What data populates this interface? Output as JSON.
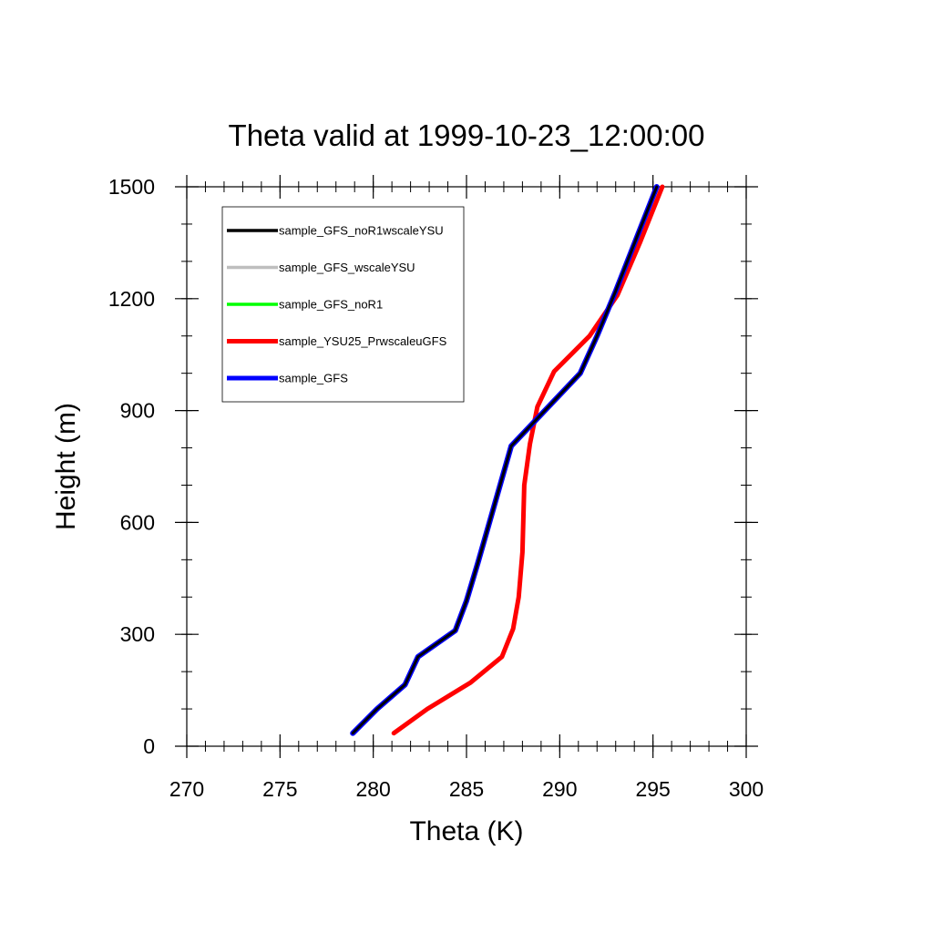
{
  "chart_data": {
    "type": "line",
    "title": "Theta valid at 1999-10-23_12:00:00",
    "xlabel": "Theta (K)",
    "ylabel": "Height (m)",
    "xlim": [
      270,
      300
    ],
    "ylim": [
      0,
      1500
    ],
    "xticks": [
      270,
      275,
      280,
      285,
      290,
      295,
      300
    ],
    "yticks": [
      0,
      300,
      600,
      900,
      1200,
      1500
    ],
    "xtick_labels": [
      "270",
      "275",
      "280",
      "285",
      "290",
      "295",
      "300"
    ],
    "ytick_labels": [
      "0",
      "300",
      "600",
      "900",
      "1200",
      "1500"
    ],
    "x_minor_step": 1,
    "y_minor_step": 100,
    "grid": false,
    "legend_position": "top-left",
    "series": [
      {
        "name": "sample_GFS_noR1wscaleYSU",
        "color": "#000000",
        "points": [
          [
            278.9,
            35
          ],
          [
            280.2,
            100
          ],
          [
            281.7,
            165
          ],
          [
            282.4,
            240
          ],
          [
            284.4,
            310
          ],
          [
            285.0,
            390
          ],
          [
            285.6,
            490
          ],
          [
            286.4,
            630
          ],
          [
            287.4,
            805
          ],
          [
            291.1,
            1000
          ],
          [
            292.0,
            1100
          ],
          [
            293.0,
            1220
          ],
          [
            294.1,
            1360
          ],
          [
            295.2,
            1500
          ]
        ]
      },
      {
        "name": "sample_GFS_wscaleYSU",
        "color": "#bebebe",
        "points": [
          [
            278.9,
            35
          ],
          [
            280.2,
            100
          ],
          [
            281.7,
            165
          ],
          [
            282.4,
            240
          ],
          [
            284.4,
            310
          ],
          [
            285.0,
            390
          ],
          [
            285.6,
            490
          ],
          [
            286.4,
            630
          ],
          [
            287.4,
            805
          ],
          [
            291.1,
            1000
          ],
          [
            292.0,
            1100
          ],
          [
            293.0,
            1220
          ],
          [
            294.1,
            1360
          ],
          [
            295.2,
            1500
          ]
        ]
      },
      {
        "name": "sample_GFS_noR1",
        "color": "#00ff00",
        "points": [
          [
            278.9,
            35
          ],
          [
            280.2,
            100
          ],
          [
            281.7,
            165
          ],
          [
            282.4,
            240
          ],
          [
            284.4,
            310
          ],
          [
            285.0,
            390
          ],
          [
            285.6,
            490
          ],
          [
            286.4,
            630
          ],
          [
            287.4,
            805
          ],
          [
            291.1,
            1000
          ],
          [
            292.0,
            1100
          ],
          [
            293.0,
            1220
          ],
          [
            294.1,
            1360
          ],
          [
            295.2,
            1500
          ]
        ]
      },
      {
        "name": "sample_YSU25_PrwscaleuGFS",
        "color": "#ff0000",
        "points": [
          [
            281.1,
            35
          ],
          [
            282.9,
            100
          ],
          [
            285.2,
            170
          ],
          [
            286.9,
            240
          ],
          [
            287.5,
            315
          ],
          [
            287.8,
            400
          ],
          [
            288.0,
            520
          ],
          [
            288.1,
            700
          ],
          [
            288.4,
            810
          ],
          [
            288.8,
            910
          ],
          [
            289.7,
            1005
          ],
          [
            291.6,
            1100
          ],
          [
            293.1,
            1210
          ],
          [
            294.3,
            1350
          ],
          [
            295.5,
            1500
          ]
        ]
      },
      {
        "name": "sample_GFS",
        "color": "#0000ff",
        "points": [
          [
            278.9,
            35
          ],
          [
            280.2,
            100
          ],
          [
            281.7,
            165
          ],
          [
            282.4,
            240
          ],
          [
            284.4,
            310
          ],
          [
            285.0,
            390
          ],
          [
            285.6,
            490
          ],
          [
            286.4,
            630
          ],
          [
            287.4,
            805
          ],
          [
            291.1,
            1000
          ],
          [
            292.0,
            1100
          ],
          [
            293.0,
            1220
          ],
          [
            294.1,
            1360
          ],
          [
            295.2,
            1500
          ]
        ]
      }
    ]
  }
}
